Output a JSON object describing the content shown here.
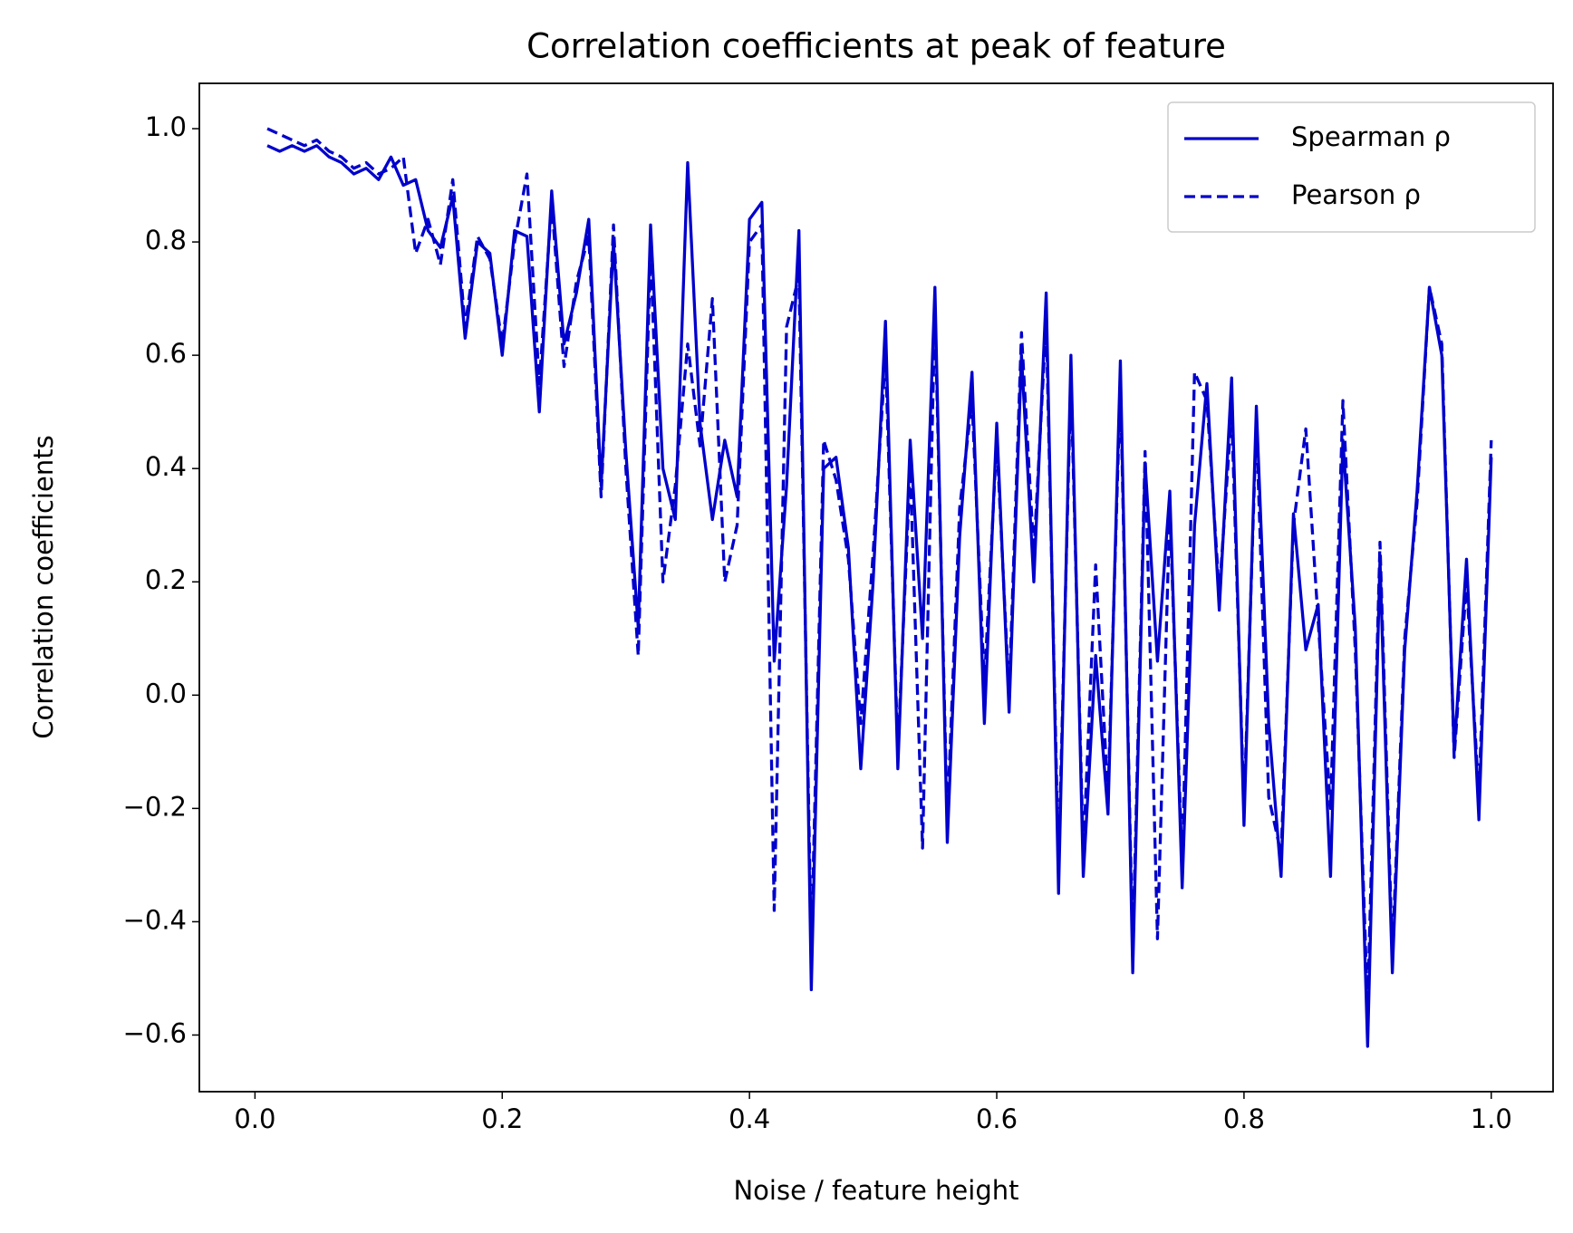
{
  "chart_data": {
    "type": "line",
    "title": "Correlation coefficients at peak of feature",
    "xlabel": "Noise / feature height",
    "ylabel": "Correlation coefficients",
    "x": [
      0.01,
      0.02,
      0.03,
      0.04,
      0.05,
      0.06,
      0.07,
      0.08,
      0.09,
      0.1,
      0.11,
      0.12,
      0.13,
      0.14,
      0.15,
      0.16,
      0.17,
      0.18,
      0.19,
      0.2,
      0.21,
      0.22,
      0.23,
      0.24,
      0.25,
      0.26,
      0.27,
      0.28,
      0.29,
      0.3,
      0.31,
      0.32,
      0.33,
      0.34,
      0.35,
      0.36,
      0.37,
      0.38,
      0.39,
      0.4,
      0.41,
      0.42,
      0.43,
      0.44,
      0.45,
      0.46,
      0.47,
      0.48,
      0.49,
      0.5,
      0.51,
      0.52,
      0.53,
      0.54,
      0.55,
      0.56,
      0.57,
      0.58,
      0.59,
      0.6,
      0.61,
      0.62,
      0.63,
      0.64,
      0.65,
      0.66,
      0.67,
      0.68,
      0.69,
      0.7,
      0.71,
      0.72,
      0.73,
      0.74,
      0.75,
      0.76,
      0.77,
      0.78,
      0.79,
      0.8,
      0.81,
      0.82,
      0.83,
      0.84,
      0.85,
      0.86,
      0.87,
      0.88,
      0.89,
      0.9,
      0.91,
      0.92,
      0.93,
      0.94,
      0.95,
      0.96,
      0.97,
      0.98,
      0.99,
      1.0
    ],
    "series": [
      {
        "name": "Spearman ρ",
        "color": "#0000cc",
        "linestyle": "solid",
        "values": [
          0.97,
          0.96,
          0.97,
          0.96,
          0.97,
          0.95,
          0.94,
          0.92,
          0.93,
          0.91,
          0.95,
          0.9,
          0.91,
          0.82,
          0.79,
          0.88,
          0.63,
          0.8,
          0.78,
          0.6,
          0.82,
          0.81,
          0.5,
          0.89,
          0.62,
          0.71,
          0.84,
          0.37,
          0.8,
          0.43,
          0.12,
          0.83,
          0.4,
          0.31,
          0.94,
          0.48,
          0.31,
          0.45,
          0.35,
          0.84,
          0.87,
          0.06,
          0.37,
          0.82,
          -0.52,
          0.4,
          0.42,
          0.26,
          -0.13,
          0.2,
          0.66,
          -0.13,
          0.45,
          0.1,
          0.72,
          -0.26,
          0.28,
          0.57,
          -0.05,
          0.48,
          -0.03,
          0.6,
          0.2,
          0.71,
          -0.35,
          0.6,
          -0.32,
          0.07,
          -0.21,
          0.59,
          -0.49,
          0.41,
          0.06,
          0.36,
          -0.34,
          0.3,
          0.55,
          0.15,
          0.56,
          -0.23,
          0.51,
          -0.05,
          -0.32,
          0.32,
          0.08,
          0.16,
          -0.32,
          0.45,
          0.12,
          -0.62,
          0.24,
          -0.49,
          0.08,
          0.36,
          0.72,
          0.6,
          -0.1,
          0.24,
          -0.22,
          0.42
        ]
      },
      {
        "name": "Pearson ρ",
        "color": "#0000cc",
        "linestyle": "dashed",
        "values": [
          1.0,
          0.99,
          0.98,
          0.97,
          0.98,
          0.96,
          0.95,
          0.93,
          0.94,
          0.92,
          0.93,
          0.95,
          0.78,
          0.84,
          0.76,
          0.91,
          0.65,
          0.81,
          0.77,
          0.62,
          0.8,
          0.92,
          0.55,
          0.87,
          0.58,
          0.73,
          0.81,
          0.35,
          0.83,
          0.4,
          0.07,
          0.78,
          0.2,
          0.37,
          0.62,
          0.44,
          0.7,
          0.2,
          0.3,
          0.8,
          0.83,
          -0.38,
          0.65,
          0.74,
          -0.45,
          0.45,
          0.38,
          0.24,
          -0.05,
          0.25,
          0.6,
          -0.1,
          0.4,
          -0.27,
          0.68,
          -0.22,
          0.33,
          0.52,
          0.02,
          0.45,
          0.0,
          0.64,
          0.25,
          0.66,
          -0.3,
          0.56,
          -0.28,
          0.23,
          -0.18,
          0.55,
          -0.45,
          0.43,
          -0.43,
          0.33,
          -0.3,
          0.57,
          0.52,
          0.18,
          0.5,
          -0.2,
          0.48,
          -0.18,
          -0.28,
          0.3,
          0.47,
          0.13,
          -0.2,
          0.52,
          0.08,
          -0.55,
          0.27,
          -0.46,
          0.1,
          0.34,
          0.72,
          0.62,
          -0.11,
          0.2,
          -0.18,
          0.45
        ]
      }
    ],
    "xlim": [
      -0.045,
      1.05
    ],
    "ylim": [
      -0.7,
      1.08
    ],
    "xticks": [
      {
        "value": 0,
        "label": "0.0"
      },
      {
        "value": 0.2,
        "label": "0.2"
      },
      {
        "value": 0.4,
        "label": "0.4"
      },
      {
        "value": 0.6,
        "label": "0.6"
      },
      {
        "value": 0.8,
        "label": "0.8"
      },
      {
        "value": 1,
        "label": "1.0"
      }
    ],
    "yticks": [
      {
        "value": -0.6,
        "label": "−0.6"
      },
      {
        "value": -0.4,
        "label": "−0.4"
      },
      {
        "value": -0.2,
        "label": "−0.2"
      },
      {
        "value": 0,
        "label": "0.0"
      },
      {
        "value": 0.2,
        "label": "0.2"
      },
      {
        "value": 0.4,
        "label": "0.4"
      },
      {
        "value": 0.6,
        "label": "0.6"
      },
      {
        "value": 0.8,
        "label": "0.8"
      },
      {
        "value": 1,
        "label": "1.0"
      }
    ],
    "grid": false,
    "legend": "upper right"
  }
}
